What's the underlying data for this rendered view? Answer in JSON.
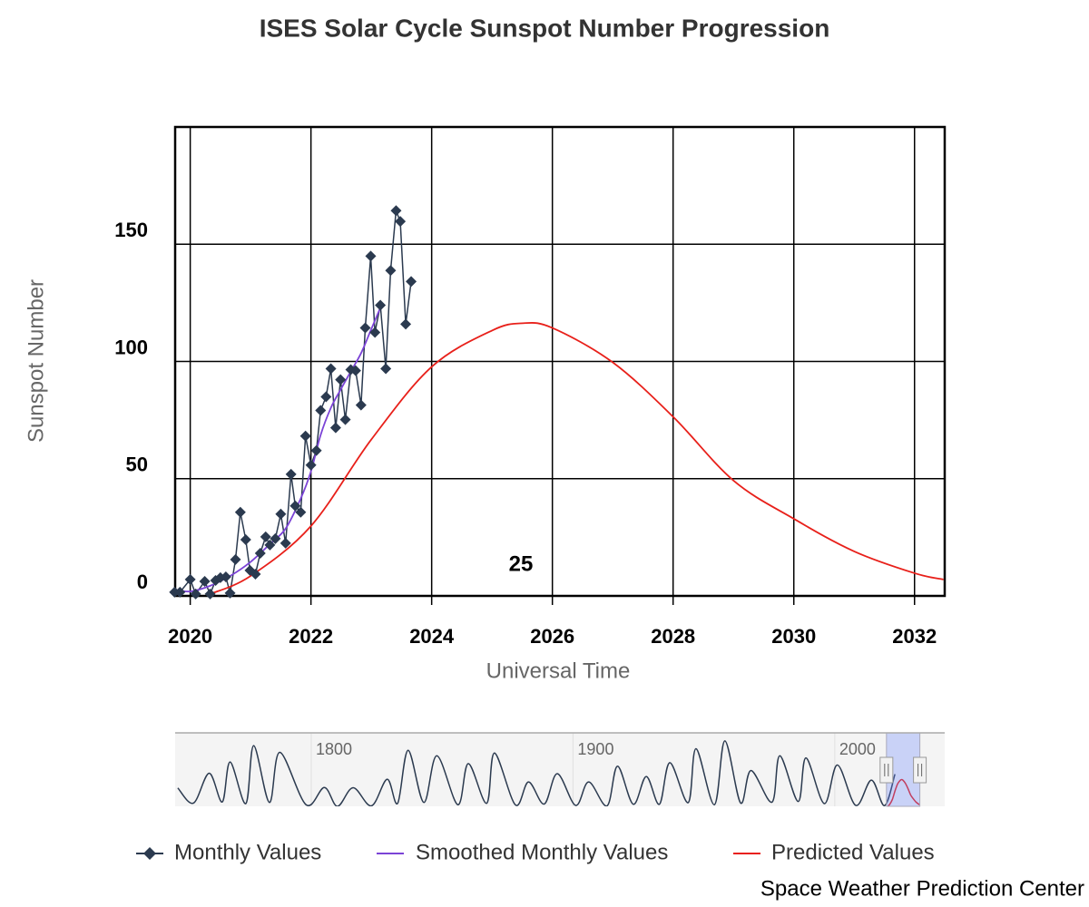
{
  "chart_data": {
    "type": "line",
    "title": "ISES Solar Cycle Sunspot Number Progression",
    "y_label": "Sunspot Number",
    "x_label": "Universal Time",
    "annotation": "25",
    "credits": "Space Weather Prediction Center",
    "xlim": [
      2019.75,
      2032.5
    ],
    "ylim": [
      0,
      200
    ],
    "xticks": [
      2020,
      2022,
      2024,
      2026,
      2028,
      2030,
      2032
    ],
    "yticks": [
      0,
      50,
      100,
      150
    ],
    "grid": true,
    "legend": "bottom",
    "series": [
      {
        "name": "Monthly Values",
        "color": "#2b3a4f",
        "marker": "diamond",
        "x": [
          2019.74,
          2019.83,
          2020.0,
          2020.09,
          2020.24,
          2020.33,
          2020.42,
          2020.5,
          2020.59,
          2020.66,
          2020.75,
          2020.83,
          2020.92,
          2020.99,
          2021.08,
          2021.16,
          2021.25,
          2021.32,
          2021.41,
          2021.5,
          2021.58,
          2021.67,
          2021.74,
          2021.83,
          2021.91,
          2022.0,
          2022.09,
          2022.16,
          2022.25,
          2022.33,
          2022.41,
          2022.49,
          2022.57,
          2022.66,
          2022.74,
          2022.83,
          2022.9,
          2022.99,
          2023.06,
          2023.15,
          2023.24,
          2023.32,
          2023.41,
          2023.48,
          2023.57,
          2023.66
        ],
        "values": [
          1.6,
          1.6,
          7.0,
          0.8,
          6.2,
          0.8,
          6.6,
          7.8,
          8.1,
          1.2,
          15.5,
          35.7,
          24.0,
          10.9,
          9.3,
          18.2,
          25.2,
          21.7,
          24.4,
          34.9,
          22.5,
          51.9,
          38.4,
          35.7,
          68.2,
          55.8,
          62.0,
          79.1,
          84.9,
          96.9,
          71.7,
          92.2,
          75.2,
          96.5,
          96.1,
          81.4,
          114.3,
          144.9,
          112.4,
          124.0,
          96.9,
          138.8,
          164.3,
          159.7,
          115.9,
          134.1
        ]
      },
      {
        "name": "Smoothed Monthly Values",
        "color": "#7b43d6",
        "x": [
          2019.74,
          2020.0,
          2020.33,
          2020.66,
          2020.99,
          2021.32,
          2021.58,
          2021.83,
          2022.0,
          2022.16,
          2022.33,
          2022.49,
          2022.66,
          2022.83,
          2022.99,
          2023.15
        ],
        "values": [
          2.7,
          1.9,
          4.3,
          8.5,
          14.3,
          22.1,
          28.7,
          41.5,
          53.1,
          68.6,
          80.2,
          87.9,
          95.7,
          103.5,
          113.2,
          122.9
        ]
      },
      {
        "name": "Predicted Values",
        "color": "#e8201a",
        "x": [
          2020.33,
          2021.0,
          2022.0,
          2023.0,
          2024.0,
          2025.0,
          2025.51,
          2026.0,
          2027.0,
          2028.0,
          2029.0,
          2030.0,
          2031.0,
          2032.0,
          2032.48
        ],
        "values": [
          0.8,
          8.5,
          29.8,
          66.7,
          97.7,
          113.2,
          116.3,
          114.3,
          99.6,
          76.4,
          49.2,
          32.9,
          19.0,
          9.7,
          7.0
        ]
      }
    ],
    "navigator": {
      "color": "#2b3a4f",
      "xlim": [
        1748,
        2042
      ],
      "ylim": [
        0,
        320
      ],
      "xticks": [
        1800,
        1900,
        2000
      ],
      "x": [
        1749,
        1755,
        1761,
        1766,
        1769,
        1775,
        1778,
        1784,
        1788,
        1798,
        1805,
        1810,
        1816,
        1823,
        1829,
        1833,
        1837,
        1843,
        1848,
        1856,
        1860,
        1867,
        1870,
        1878,
        1883,
        1889,
        1894,
        1901,
        1906,
        1913,
        1917,
        1923,
        1928,
        1933,
        1937,
        1944,
        1947,
        1954,
        1958,
        1964,
        1968,
        1976,
        1979,
        1986,
        1989,
        1996,
        2001,
        2008,
        2014,
        2019,
        2023
      ],
      "values": [
        80,
        14,
        144,
        19,
        193,
        12,
        264,
        17,
        235,
        7,
        82,
        0,
        81,
        2,
        118,
        13,
        244,
        17,
        220,
        7,
        186,
        13,
        232,
        6,
        106,
        10,
        142,
        4,
        106,
        2,
        175,
        9,
        130,
        9,
        190,
        16,
        251,
        7,
        285,
        15,
        156,
        18,
        220,
        21,
        211,
        12,
        180,
        4,
        114,
        3,
        140
      ]
    }
  }
}
